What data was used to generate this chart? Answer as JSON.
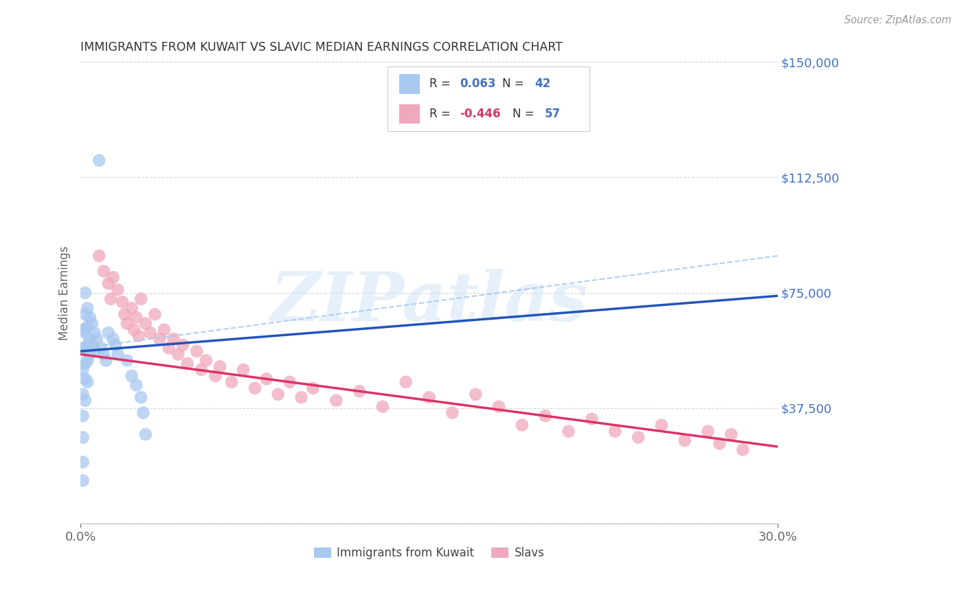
{
  "title": "IMMIGRANTS FROM KUWAIT VS SLAVIC MEDIAN EARNINGS CORRELATION CHART",
  "source": "Source: ZipAtlas.com",
  "ylabel": "Median Earnings",
  "yticks": [
    0,
    37500,
    75000,
    112500,
    150000
  ],
  "ytick_labels": [
    "",
    "$37,500",
    "$75,000",
    "$112,500",
    "$150,000"
  ],
  "xlim": [
    0.0,
    0.3
  ],
  "ylim": [
    0,
    150000
  ],
  "legend_labels_bottom": [
    "Immigrants from Kuwait",
    "Slavs"
  ],
  "blue_color": "#a8c8f0",
  "pink_color": "#f0a8bc",
  "blue_line_color": "#2255bb",
  "pink_line_color": "#dd3366",
  "axis_color": "#4472c4",
  "grid_color": "#cccccc",
  "background_color": "#ffffff",
  "title_color": "#333333",
  "watermark_text": "ZIPatlas",
  "blue_scatter": [
    [
      0.001,
      63000
    ],
    [
      0.001,
      57000
    ],
    [
      0.001,
      50000
    ],
    [
      0.001,
      42000
    ],
    [
      0.001,
      35000
    ],
    [
      0.001,
      28000
    ],
    [
      0.001,
      20000
    ],
    [
      0.001,
      14000
    ],
    [
      0.002,
      75000
    ],
    [
      0.002,
      68000
    ],
    [
      0.002,
      62000
    ],
    [
      0.002,
      57000
    ],
    [
      0.002,
      52000
    ],
    [
      0.002,
      47000
    ],
    [
      0.002,
      40000
    ],
    [
      0.003,
      70000
    ],
    [
      0.003,
      64000
    ],
    [
      0.003,
      58000
    ],
    [
      0.003,
      53000
    ],
    [
      0.003,
      46000
    ],
    [
      0.004,
      67000
    ],
    [
      0.004,
      60000
    ],
    [
      0.004,
      55000
    ],
    [
      0.005,
      65000
    ],
    [
      0.005,
      58000
    ],
    [
      0.006,
      62000
    ],
    [
      0.006,
      56000
    ],
    [
      0.007,
      60000
    ],
    [
      0.008,
      118000
    ],
    [
      0.009,
      57000
    ],
    [
      0.01,
      55000
    ],
    [
      0.011,
      53000
    ],
    [
      0.012,
      62000
    ],
    [
      0.014,
      60000
    ],
    [
      0.015,
      58000
    ],
    [
      0.016,
      55000
    ],
    [
      0.02,
      53000
    ],
    [
      0.022,
      48000
    ],
    [
      0.024,
      45000
    ],
    [
      0.026,
      41000
    ],
    [
      0.027,
      36000
    ],
    [
      0.028,
      29000
    ]
  ],
  "pink_scatter": [
    [
      0.008,
      87000
    ],
    [
      0.01,
      82000
    ],
    [
      0.012,
      78000
    ],
    [
      0.013,
      73000
    ],
    [
      0.014,
      80000
    ],
    [
      0.016,
      76000
    ],
    [
      0.018,
      72000
    ],
    [
      0.019,
      68000
    ],
    [
      0.02,
      65000
    ],
    [
      0.022,
      70000
    ],
    [
      0.023,
      63000
    ],
    [
      0.024,
      67000
    ],
    [
      0.025,
      61000
    ],
    [
      0.026,
      73000
    ],
    [
      0.028,
      65000
    ],
    [
      0.03,
      62000
    ],
    [
      0.032,
      68000
    ],
    [
      0.034,
      60000
    ],
    [
      0.036,
      63000
    ],
    [
      0.038,
      57000
    ],
    [
      0.04,
      60000
    ],
    [
      0.042,
      55000
    ],
    [
      0.044,
      58000
    ],
    [
      0.046,
      52000
    ],
    [
      0.05,
      56000
    ],
    [
      0.052,
      50000
    ],
    [
      0.054,
      53000
    ],
    [
      0.058,
      48000
    ],
    [
      0.06,
      51000
    ],
    [
      0.065,
      46000
    ],
    [
      0.07,
      50000
    ],
    [
      0.075,
      44000
    ],
    [
      0.08,
      47000
    ],
    [
      0.085,
      42000
    ],
    [
      0.09,
      46000
    ],
    [
      0.095,
      41000
    ],
    [
      0.1,
      44000
    ],
    [
      0.11,
      40000
    ],
    [
      0.12,
      43000
    ],
    [
      0.13,
      38000
    ],
    [
      0.14,
      46000
    ],
    [
      0.15,
      41000
    ],
    [
      0.16,
      36000
    ],
    [
      0.17,
      42000
    ],
    [
      0.18,
      38000
    ],
    [
      0.19,
      32000
    ],
    [
      0.2,
      35000
    ],
    [
      0.21,
      30000
    ],
    [
      0.22,
      34000
    ],
    [
      0.23,
      30000
    ],
    [
      0.24,
      28000
    ],
    [
      0.25,
      32000
    ],
    [
      0.26,
      27000
    ],
    [
      0.27,
      30000
    ],
    [
      0.275,
      26000
    ],
    [
      0.28,
      29000
    ],
    [
      0.285,
      24000
    ]
  ],
  "blue_line_x": [
    0.0,
    0.3
  ],
  "blue_line_y": [
    56000,
    74000
  ],
  "pink_line_x": [
    0.0,
    0.3
  ],
  "pink_line_y": [
    55000,
    25000
  ],
  "dashed_line_x": [
    0.0,
    0.3
  ],
  "dashed_line_y": [
    57000,
    87000
  ]
}
